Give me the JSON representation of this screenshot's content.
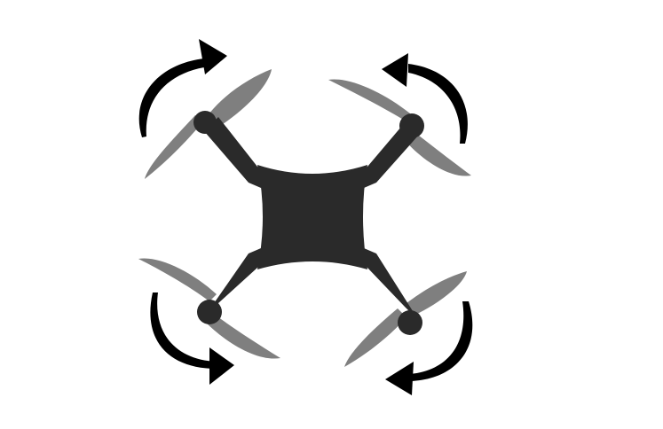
{
  "diagram": {
    "subject": "quadcopter-top-view",
    "colors": {
      "background": "#ffffff",
      "frame": "#2a2a2a",
      "propeller": "#7f7f7f",
      "arrow": "#000000"
    },
    "rotors": [
      {
        "id": "front-left",
        "rotation": "clockwise"
      },
      {
        "id": "front-right",
        "rotation": "counter-clockwise"
      },
      {
        "id": "rear-left",
        "rotation": "counter-clockwise"
      },
      {
        "id": "rear-right",
        "rotation": "clockwise"
      }
    ]
  }
}
